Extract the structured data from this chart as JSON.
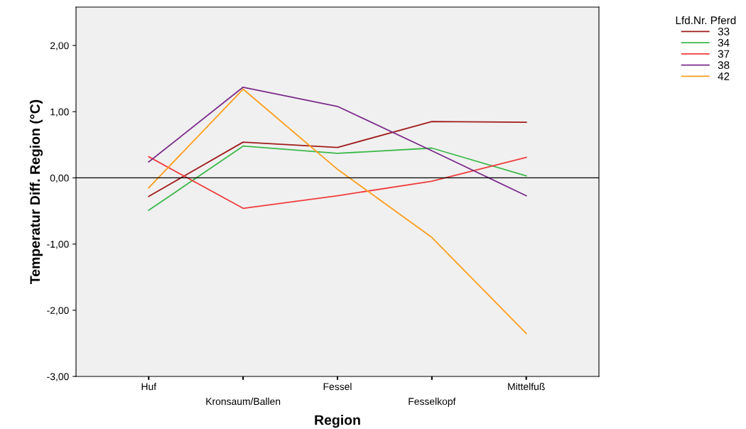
{
  "chart_data": {
    "type": "line",
    "xlabel": "Region",
    "ylabel": "Temperatur Diff. Region (°C)",
    "legend_title": "Lfd.Nr. Pferd",
    "categories": [
      "Huf",
      "Kronsaum/Ballen",
      "Fessel",
      "Fesselkopf",
      "Mittelfuß"
    ],
    "series": [
      {
        "name": "33",
        "color": "#a01c1c",
        "values": [
          -0.28,
          0.54,
          0.46,
          0.85,
          0.84
        ]
      },
      {
        "name": "34",
        "color": "#3cb94a",
        "values": [
          -0.49,
          0.48,
          0.37,
          0.45,
          0.03
        ]
      },
      {
        "name": "37",
        "color": "#f03c3c",
        "values": [
          0.32,
          -0.46,
          -0.27,
          -0.05,
          0.31
        ]
      },
      {
        "name": "38",
        "color": "#7b2c8a",
        "values": [
          0.24,
          1.37,
          1.08,
          0.41,
          -0.27
        ]
      },
      {
        "name": "42",
        "color": "#ff9d1c",
        "values": [
          -0.15,
          1.34,
          0.13,
          -0.9,
          -2.35
        ]
      }
    ],
    "ylim": [
      -3,
      2.58
    ],
    "yticks": [
      {
        "value": -3,
        "label": "-3,00"
      },
      {
        "value": -2,
        "label": "-2,00"
      },
      {
        "value": -1,
        "label": "-1,00"
      },
      {
        "value": 0,
        "label": "0,00"
      },
      {
        "value": 1,
        "label": "1,00"
      },
      {
        "value": 2,
        "label": "2,00"
      }
    ],
    "ref_lines": [
      {
        "axis": "y",
        "value": 0,
        "color": "#000000"
      }
    ],
    "grid": false,
    "legend": "top right",
    "marker": "none",
    "line_style": "solid"
  }
}
